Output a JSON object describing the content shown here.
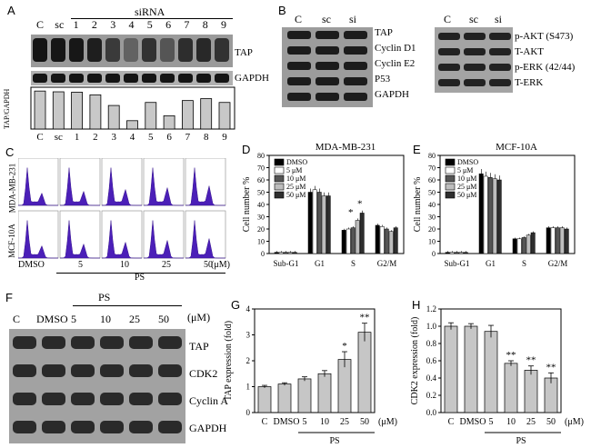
{
  "panels": {
    "A": {
      "letter": "A",
      "title": "siRNA",
      "lanes": [
        "C",
        "sc",
        "1",
        "2",
        "3",
        "4",
        "5",
        "6",
        "7",
        "8",
        "9"
      ],
      "blot_labels": [
        "TAP",
        "GAPDH"
      ],
      "ylabel": "TAP/GAPDH",
      "chart_data": {
        "type": "bar",
        "categories": [
          "C",
          "sc",
          "1",
          "2",
          "3",
          "4",
          "5",
          "6",
          "7",
          "8",
          "9"
        ],
        "values": [
          100,
          98,
          97,
          90,
          62,
          22,
          70,
          35,
          75,
          80,
          70
        ],
        "ylim": [
          0,
          110
        ]
      }
    },
    "B": {
      "letter": "B",
      "lanes_left": [
        "C",
        "sc",
        "si"
      ],
      "labels_left": [
        "TAP",
        "Cyclin D1",
        "Cyclin E2",
        "P53",
        "GAPDH"
      ],
      "lanes_right": [
        "C",
        "sc",
        "si"
      ],
      "labels_right": [
        "p-AKT (S473)",
        "T-AKT",
        "p-ERK (42/44)",
        "T-ERK"
      ]
    },
    "C": {
      "letter": "C",
      "row_labels": [
        "MDA-MB-231",
        "MCF-10A"
      ],
      "col_labels": [
        "DMSO",
        "5",
        "10",
        "25",
        "50"
      ],
      "unit": "(μM)",
      "group_label": "PS"
    },
    "D": {
      "letter": "D",
      "title": "MDA-MB-231",
      "ylabel": "Cell number %",
      "legend": [
        "DMSO",
        "5 μM",
        "10 μM",
        "25 μM",
        "50 μM"
      ],
      "chart_data": {
        "type": "bar",
        "title": "MDA-MB-231",
        "ylabel": "Cell number %",
        "categories": [
          "Sub-G1",
          "G1",
          "S",
          "G2/M"
        ],
        "ylim": [
          0,
          80
        ],
        "yticks": [
          0,
          10,
          20,
          30,
          40,
          50,
          60,
          70,
          80
        ],
        "series": [
          {
            "name": "DMSO",
            "values": [
              1,
              50,
              19,
              23
            ]
          },
          {
            "name": "5 μM",
            "values": [
              1,
              52,
              20,
              22
            ]
          },
          {
            "name": "10 μM",
            "values": [
              1,
              50,
              21,
              20
            ]
          },
          {
            "name": "25 μM",
            "values": [
              1,
              47,
              27,
              18
            ]
          },
          {
            "name": "50 μM",
            "values": [
              1,
              47,
              33,
              21
            ]
          }
        ],
        "annotations": [
          "*",
          "*"
        ]
      }
    },
    "E": {
      "letter": "E",
      "title": "MCF-10A",
      "ylabel": "Cell number %",
      "legend": [
        "DMSO",
        "5 μM",
        "10 μM",
        "25 μM",
        "50 μM"
      ],
      "chart_data": {
        "type": "bar",
        "title": "MCF-10A",
        "ylabel": "Cell number %",
        "categories": [
          "Sub-G1",
          "G1",
          "S",
          "G2/M"
        ],
        "ylim": [
          0,
          80
        ],
        "yticks": [
          0,
          10,
          20,
          30,
          40,
          50,
          60,
          70,
          80
        ],
        "series": [
          {
            "name": "DMSO",
            "values": [
              1,
              65,
              12,
              21
            ]
          },
          {
            "name": "5 μM",
            "values": [
              1,
              63,
              12,
              21
            ]
          },
          {
            "name": "10 μM",
            "values": [
              1,
              62,
              13,
              21
            ]
          },
          {
            "name": "25 μM",
            "values": [
              1,
              61,
              15,
              21
            ]
          },
          {
            "name": "50 μM",
            "values": [
              1,
              60,
              17,
              20
            ]
          }
        ]
      }
    },
    "F": {
      "letter": "F",
      "group_label": "PS",
      "lanes": [
        "C",
        "DMSO",
        "5",
        "10",
        "25",
        "50"
      ],
      "unit": "(μM)",
      "labels": [
        "TAP",
        "CDK2",
        "Cyclin A",
        "GAPDH"
      ]
    },
    "G": {
      "letter": "G",
      "ylabel": "TAP expression (fold)",
      "group_label": "PS",
      "unit": "(μM)",
      "chart_data": {
        "type": "bar",
        "ylabel": "TAP expression (fold)",
        "categories": [
          "C",
          "DMSO",
          "5",
          "10",
          "25",
          "50"
        ],
        "values": [
          1.0,
          1.1,
          1.3,
          1.5,
          2.05,
          3.1
        ],
        "errors": [
          0.05,
          0.05,
          0.08,
          0.12,
          0.3,
          0.35
        ],
        "ylim": [
          0,
          4
        ],
        "yticks": [
          0,
          1,
          2,
          3,
          4
        ],
        "annotations": [
          "",
          "",
          "",
          "",
          "*",
          "**"
        ]
      }
    },
    "H": {
      "letter": "H",
      "ylabel": "CDK2 expression (fold)",
      "group_label": "PS",
      "unit": "(μM)",
      "chart_data": {
        "type": "bar",
        "ylabel": "CDK2 expression (fold)",
        "categories": [
          "C",
          "DMSO",
          "5",
          "10",
          "25",
          "50"
        ],
        "values": [
          1.0,
          1.0,
          0.94,
          0.57,
          0.49,
          0.4
        ],
        "errors": [
          0.04,
          0.03,
          0.07,
          0.03,
          0.05,
          0.06
        ],
        "ylim": [
          0.0,
          1.2
        ],
        "yticks": [
          0.0,
          0.2,
          0.4,
          0.6,
          0.8,
          1.0,
          1.2
        ],
        "annotations": [
          "",
          "",
          "",
          "**",
          "**",
          "**"
        ]
      }
    }
  }
}
